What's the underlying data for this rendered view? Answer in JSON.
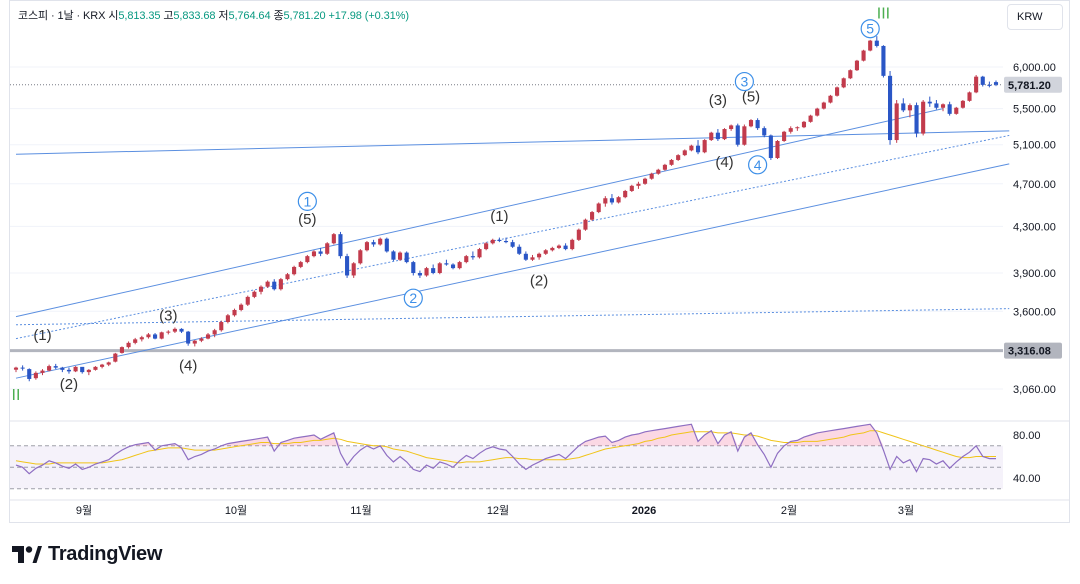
{
  "legend": {
    "symbol": "코스피 · 1날 · KRX",
    "open_label": "시",
    "open": "5,813.35",
    "high_label": "고",
    "high": "5,833.68",
    "low_label": "저",
    "low": "5,764.64",
    "close_label": "종",
    "close": "5,781.20",
    "change": "+17.98 (+0.31%)"
  },
  "currency_button": "KRW",
  "brand": "TradingView",
  "colors": {
    "up": "#c23b4c",
    "down": "#2a56c6",
    "line": "#5b8fe0",
    "rsi": "#8e6ec2",
    "rsi_ma": "#f0c419",
    "wave": "#3d8fe8",
    "roman": "#4caf50"
  },
  "chart_data": {
    "type": "candlestick",
    "price_axis": {
      "ticks": [
        6000,
        5500,
        5100,
        4700,
        4300,
        3900,
        3600,
        3060
      ],
      "tick_labels": [
        "6,000.00",
        "5,500.00",
        "5,100.00",
        "4,700.00",
        "4,300.00",
        "3,900.00",
        "3,600.00",
        "3,060.00"
      ],
      "scale": "log"
    },
    "price_labels": [
      {
        "value": 5781.2,
        "text": "5,781.20"
      },
      {
        "value": 3316.08,
        "text": "3,316.08"
      }
    ],
    "time_axis": [
      "9월",
      "10월",
      "11월",
      "12월",
      "2026",
      "2월",
      "3월"
    ],
    "rsi_axis": {
      "ticks": [
        80,
        40
      ],
      "tick_labels": [
        "80.00",
        "40.00"
      ],
      "bands": [
        70,
        50,
        30
      ]
    },
    "candles": [
      [
        3186,
        3206,
        3170,
        3200
      ],
      [
        3200,
        3215,
        3180,
        3195
      ],
      [
        3190,
        3195,
        3110,
        3125
      ],
      [
        3130,
        3175,
        3120,
        3165
      ],
      [
        3165,
        3190,
        3150,
        3180
      ],
      [
        3180,
        3220,
        3175,
        3210
      ],
      [
        3210,
        3225,
        3190,
        3200
      ],
      [
        3200,
        3205,
        3170,
        3185
      ],
      [
        3185,
        3200,
        3160,
        3175
      ],
      [
        3175,
        3210,
        3170,
        3205
      ],
      [
        3205,
        3200,
        3160,
        3170
      ],
      [
        3170,
        3190,
        3150,
        3185
      ],
      [
        3185,
        3210,
        3180,
        3205
      ],
      [
        3205,
        3225,
        3195,
        3220
      ],
      [
        3220,
        3240,
        3210,
        3235
      ],
      [
        3240,
        3300,
        3235,
        3295
      ],
      [
        3300,
        3345,
        3295,
        3340
      ],
      [
        3340,
        3380,
        3330,
        3370
      ],
      [
        3370,
        3405,
        3360,
        3395
      ],
      [
        3395,
        3420,
        3380,
        3410
      ],
      [
        3410,
        3440,
        3400,
        3430
      ],
      [
        3430,
        3440,
        3395,
        3400
      ],
      [
        3400,
        3450,
        3395,
        3445
      ],
      [
        3445,
        3460,
        3430,
        3450
      ],
      [
        3450,
        3480,
        3440,
        3470
      ],
      [
        3470,
        3475,
        3440,
        3450
      ],
      [
        3450,
        3455,
        3350,
        3365
      ],
      [
        3365,
        3390,
        3345,
        3385
      ],
      [
        3385,
        3410,
        3375,
        3400
      ],
      [
        3400,
        3440,
        3395,
        3430
      ],
      [
        3430,
        3470,
        3410,
        3460
      ],
      [
        3460,
        3530,
        3450,
        3520
      ],
      [
        3520,
        3580,
        3510,
        3570
      ],
      [
        3570,
        3620,
        3560,
        3610
      ],
      [
        3610,
        3660,
        3600,
        3650
      ],
      [
        3650,
        3720,
        3640,
        3710
      ],
      [
        3710,
        3760,
        3700,
        3750
      ],
      [
        3750,
        3800,
        3730,
        3790
      ],
      [
        3790,
        3840,
        3780,
        3830
      ],
      [
        3830,
        3850,
        3760,
        3770
      ],
      [
        3770,
        3860,
        3760,
        3850
      ],
      [
        3850,
        3900,
        3840,
        3890
      ],
      [
        3890,
        3960,
        3880,
        3950
      ],
      [
        3950,
        4000,
        3940,
        3990
      ],
      [
        3990,
        4050,
        3980,
        4040
      ],
      [
        4040,
        4090,
        4030,
        4080
      ],
      [
        4080,
        4110,
        4040,
        4060
      ],
      [
        4060,
        4160,
        4050,
        4150
      ],
      [
        4150,
        4240,
        4140,
        4230
      ],
      [
        4230,
        4250,
        4020,
        4040
      ],
      [
        4040,
        4060,
        3860,
        3880
      ],
      [
        3880,
        3990,
        3860,
        3980
      ],
      [
        3980,
        4100,
        3970,
        4090
      ],
      [
        4090,
        4170,
        4080,
        4160
      ],
      [
        4160,
        4180,
        4120,
        4140
      ],
      [
        4140,
        4200,
        4130,
        4190
      ],
      [
        4190,
        4200,
        4070,
        4080
      ],
      [
        4080,
        4090,
        4000,
        4010
      ],
      [
        4010,
        4080,
        4000,
        4070
      ],
      [
        4070,
        4080,
        3980,
        3990
      ],
      [
        3990,
        4000,
        3880,
        3900
      ],
      [
        3900,
        3920,
        3860,
        3880
      ],
      [
        3880,
        3950,
        3870,
        3940
      ],
      [
        3940,
        3970,
        3890,
        3900
      ],
      [
        3900,
        3990,
        3890,
        3980
      ],
      [
        3980,
        4010,
        3960,
        3970
      ],
      [
        3970,
        3980,
        3930,
        3940
      ],
      [
        3940,
        4000,
        3930,
        3990
      ],
      [
        3990,
        4050,
        3980,
        4040
      ],
      [
        4040,
        4080,
        4010,
        4030
      ],
      [
        4030,
        4110,
        4020,
        4100
      ],
      [
        4100,
        4160,
        4090,
        4150
      ],
      [
        4150,
        4190,
        4140,
        4180
      ],
      [
        4180,
        4200,
        4160,
        4170
      ],
      [
        4170,
        4200,
        4150,
        4160
      ],
      [
        4160,
        4180,
        4110,
        4120
      ],
      [
        4120,
        4140,
        4050,
        4060
      ],
      [
        4060,
        4080,
        4000,
        4010
      ],
      [
        4010,
        4050,
        4000,
        4030
      ],
      [
        4030,
        4070,
        4010,
        4060
      ],
      [
        4060,
        4100,
        4050,
        4090
      ],
      [
        4090,
        4120,
        4080,
        4110
      ],
      [
        4110,
        4140,
        4100,
        4130
      ],
      [
        4130,
        4150,
        4090,
        4100
      ],
      [
        4100,
        4190,
        4090,
        4180
      ],
      [
        4180,
        4280,
        4170,
        4270
      ],
      [
        4270,
        4370,
        4260,
        4360
      ],
      [
        4360,
        4440,
        4350,
        4430
      ],
      [
        4430,
        4520,
        4420,
        4510
      ],
      [
        4510,
        4580,
        4480,
        4560
      ],
      [
        4560,
        4600,
        4500,
        4520
      ],
      [
        4520,
        4580,
        4510,
        4570
      ],
      [
        4570,
        4640,
        4560,
        4630
      ],
      [
        4630,
        4690,
        4620,
        4680
      ],
      [
        4680,
        4720,
        4650,
        4700
      ],
      [
        4700,
        4760,
        4690,
        4750
      ],
      [
        4750,
        4810,
        4740,
        4800
      ],
      [
        4800,
        4850,
        4790,
        4840
      ],
      [
        4840,
        4900,
        4830,
        4890
      ],
      [
        4890,
        4950,
        4880,
        4940
      ],
      [
        4940,
        5000,
        4930,
        4990
      ],
      [
        4990,
        5050,
        4980,
        5040
      ],
      [
        5040,
        5100,
        5030,
        5090
      ],
      [
        5090,
        5150,
        5000,
        5020
      ],
      [
        5020,
        5160,
        5010,
        5150
      ],
      [
        5150,
        5240,
        5140,
        5230
      ],
      [
        5230,
        5270,
        5140,
        5160
      ],
      [
        5160,
        5280,
        5150,
        5270
      ],
      [
        5270,
        5320,
        5250,
        5310
      ],
      [
        5310,
        5330,
        5080,
        5100
      ],
      [
        5100,
        5320,
        5090,
        5300
      ],
      [
        5300,
        5380,
        5290,
        5370
      ],
      [
        5370,
        5390,
        5260,
        5280
      ],
      [
        5280,
        5300,
        5180,
        5200
      ],
      [
        5200,
        5210,
        4940,
        4960
      ],
      [
        4960,
        5150,
        4950,
        5140
      ],
      [
        5140,
        5250,
        5130,
        5240
      ],
      [
        5240,
        5300,
        5220,
        5280
      ],
      [
        5280,
        5300,
        5250,
        5290
      ],
      [
        5290,
        5360,
        5280,
        5350
      ],
      [
        5350,
        5430,
        5340,
        5420
      ],
      [
        5420,
        5510,
        5410,
        5500
      ],
      [
        5500,
        5580,
        5490,
        5570
      ],
      [
        5570,
        5660,
        5560,
        5650
      ],
      [
        5650,
        5760,
        5640,
        5750
      ],
      [
        5750,
        5870,
        5740,
        5860
      ],
      [
        5860,
        5970,
        5850,
        5960
      ],
      [
        5960,
        6090,
        5950,
        6080
      ],
      [
        6080,
        6220,
        6070,
        6210
      ],
      [
        6210,
        6350,
        6200,
        6340
      ],
      [
        6340,
        6400,
        6250,
        6270
      ],
      [
        6270,
        6280,
        5870,
        5890
      ],
      [
        5890,
        5950,
        5100,
        5150
      ],
      [
        5150,
        5600,
        5120,
        5560
      ],
      [
        5560,
        5620,
        5460,
        5480
      ],
      [
        5480,
        5560,
        5400,
        5540
      ],
      [
        5540,
        5570,
        5180,
        5220
      ],
      [
        5220,
        5600,
        5200,
        5580
      ],
      [
        5580,
        5640,
        5520,
        5560
      ],
      [
        5560,
        5600,
        5490,
        5510
      ],
      [
        5510,
        5560,
        5470,
        5550
      ],
      [
        5550,
        5580,
        5420,
        5440
      ],
      [
        5440,
        5520,
        5430,
        5510
      ],
      [
        5510,
        5600,
        5500,
        5590
      ],
      [
        5590,
        5700,
        5580,
        5690
      ],
      [
        5690,
        5900,
        5680,
        5880
      ],
      [
        5880,
        5890,
        5760,
        5780
      ],
      [
        5780,
        5820,
        5750,
        5770
      ],
      [
        5813.35,
        5833.68,
        5764.64,
        5781.2
      ]
    ],
    "rsi": [
      52,
      50,
      44,
      49,
      52,
      56,
      54,
      51,
      49,
      53,
      48,
      50,
      53,
      55,
      57,
      62,
      66,
      69,
      71,
      72,
      73,
      66,
      70,
      71,
      72,
      68,
      57,
      60,
      62,
      65,
      67,
      70,
      72,
      73,
      74,
      75,
      76,
      77,
      78,
      65,
      73,
      75,
      77,
      78,
      79,
      80,
      76,
      79,
      82,
      63,
      52,
      60,
      66,
      70,
      67,
      70,
      61,
      55,
      60,
      55,
      48,
      46,
      52,
      49,
      55,
      53,
      50,
      56,
      61,
      58,
      63,
      67,
      69,
      67,
      66,
      60,
      53,
      48,
      52,
      55,
      58,
      60,
      62,
      58,
      64,
      70,
      74,
      76,
      78,
      79,
      73,
      75,
      78,
      80,
      81,
      83,
      84,
      85,
      86,
      87,
      88,
      89,
      90,
      74,
      80,
      84,
      72,
      80,
      83,
      65,
      78,
      82,
      71,
      62,
      50,
      63,
      70,
      74,
      75,
      78,
      80,
      82,
      83,
      84,
      85,
      86,
      87,
      88,
      89,
      90,
      82,
      66,
      48,
      60,
      54,
      57,
      46,
      58,
      57,
      53,
      56,
      49,
      55,
      60,
      64,
      70,
      60,
      58,
      58
    ],
    "rsi_ma": [
      56,
      55,
      54,
      53,
      53,
      53,
      54,
      54,
      54,
      54,
      54,
      54,
      54,
      54,
      55,
      56,
      57,
      59,
      61,
      63,
      65,
      66,
      67,
      68,
      68,
      68,
      67,
      66,
      66,
      66,
      66,
      67,
      68,
      69,
      70,
      71,
      72,
      73,
      73,
      72,
      72,
      72,
      73,
      73,
      74,
      75,
      75,
      76,
      77,
      76,
      74,
      73,
      72,
      71,
      70,
      70,
      69,
      67,
      66,
      65,
      63,
      61,
      59,
      58,
      57,
      56,
      55,
      54,
      55,
      55,
      55,
      56,
      57,
      58,
      59,
      59,
      58,
      58,
      57,
      57,
      57,
      57,
      57,
      57,
      58,
      59,
      61,
      63,
      65,
      67,
      68,
      69,
      70,
      71,
      72,
      74,
      75,
      77,
      78,
      80,
      81,
      82,
      83,
      83,
      83,
      83,
      82,
      82,
      82,
      81,
      80,
      80,
      79,
      77,
      75,
      74,
      73,
      73,
      73,
      74,
      74,
      74,
      75,
      76,
      77,
      78,
      80,
      81,
      82,
      84,
      84,
      82,
      80,
      78,
      76,
      74,
      72,
      70,
      68,
      66,
      64,
      62,
      60,
      59,
      59,
      60,
      60,
      60,
      60
    ],
    "channel_lines": [
      {
        "style": "solid",
        "from": [
          0,
          3130
        ],
        "to": [
          150,
          4900
        ]
      },
      {
        "style": "solid",
        "from": [
          0,
          3560
        ],
        "to": [
          140,
          5500
        ]
      },
      {
        "style": "solid",
        "from": [
          0,
          5000
        ],
        "to": [
          150,
          5250
        ]
      },
      {
        "style": "dotted",
        "from": [
          0,
          3400
        ],
        "to": [
          150,
          5200
        ]
      },
      {
        "style": "dotted",
        "from": [
          0,
          3500
        ],
        "to": [
          150,
          3620
        ]
      }
    ],
    "wave_labels": [
      {
        "text": "(1)",
        "i": 4,
        "price": 3390,
        "kind": "black"
      },
      {
        "text": "(2)",
        "i": 8,
        "price": 3060,
        "kind": "black"
      },
      {
        "text": "(3)",
        "i": 23,
        "price": 3530,
        "kind": "black"
      },
      {
        "text": "(4)",
        "i": 26,
        "price": 3180,
        "kind": "black"
      },
      {
        "text": "(5)",
        "i": 44,
        "price": 4320,
        "kind": "black"
      },
      {
        "text": "1",
        "i": 44,
        "price": 4530,
        "kind": "circle"
      },
      {
        "text": "2",
        "i": 60,
        "price": 3700,
        "kind": "circle"
      },
      {
        "text": "(1)",
        "i": 73,
        "price": 4350,
        "kind": "black"
      },
      {
        "text": "(2)",
        "i": 79,
        "price": 3800,
        "kind": "black"
      },
      {
        "text": "(3)",
        "i": 106,
        "price": 5540,
        "kind": "black"
      },
      {
        "text": "(5)",
        "i": 111,
        "price": 5580,
        "kind": "black"
      },
      {
        "text": "(4)",
        "i": 107,
        "price": 4870,
        "kind": "black"
      },
      {
        "text": "3",
        "i": 110,
        "price": 5820,
        "kind": "circle"
      },
      {
        "text": "4",
        "i": 112,
        "price": 4890,
        "kind": "circle"
      },
      {
        "text": "5",
        "i": 129,
        "price": 6500,
        "kind": "circle"
      },
      {
        "text": "III",
        "i": 131,
        "price": 6640,
        "kind": "roman"
      },
      {
        "text": "II",
        "i": 0,
        "price": 2990,
        "kind": "roman"
      }
    ]
  }
}
